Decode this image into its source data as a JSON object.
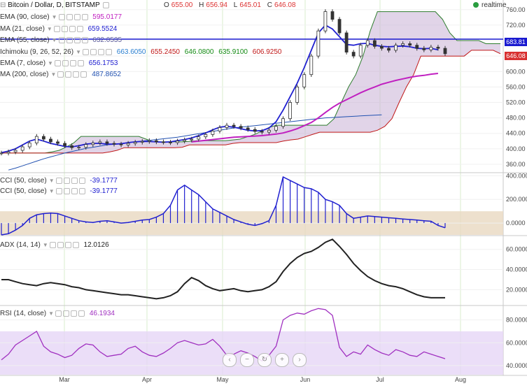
{
  "header": {
    "title": "Bitcoin / Dollar, D, BITSTAMP",
    "ohlc": [
      {
        "k": "O",
        "v": "655.00"
      },
      {
        "k": "H",
        "v": "656.94"
      },
      {
        "k": "L",
        "v": "645.01"
      },
      {
        "k": "C",
        "v": "646.08"
      }
    ],
    "realtime": "realtime"
  },
  "indicators": [
    {
      "label": "EMA (90, close)",
      "value": "595.0177",
      "color": "#c020c0"
    },
    {
      "label": "MA (21, close)",
      "value": "659.5524",
      "color": "#2020d0"
    },
    {
      "label": "EMA (55, close)",
      "value": "632.0535",
      "color": "#6060a0"
    },
    {
      "label": "Ichimoku (9, 26, 52, 26)",
      "values": [
        {
          "v": "663.6050",
          "color": "#2b7fd0"
        },
        {
          "v": "655.2450",
          "color": "#c01818"
        },
        {
          "v": "646.0800",
          "color": "#138a13"
        },
        {
          "v": "635.9100",
          "color": "#138a13"
        },
        {
          "v": "606.9250",
          "color": "#c01818"
        }
      ]
    },
    {
      "label": "EMA (7, close)",
      "value": "656.1753",
      "color": "#2020d0"
    },
    {
      "label": "MA (200, close)",
      "value": "487.8652",
      "color": "#2050b0"
    }
  ],
  "cci_labels": [
    {
      "label": "CCI (50, close)",
      "value": "-39.1777"
    },
    {
      "label": "CCI (50, close)",
      "value": "-39.1777"
    }
  ],
  "adx_label": {
    "label": "ADX (14, 14)",
    "value": "12.0126"
  },
  "rsi_label": {
    "label": "RSI (14, close)",
    "value": "46.1934"
  },
  "price_tags": [
    {
      "text": "683.81",
      "color": "#1a1ad0"
    },
    {
      "text": "646.08",
      "color": "#d83030"
    }
  ],
  "colors": {
    "candle": "#333333",
    "ema90": "#c020c0",
    "ema7": "#2020d0",
    "ma21": "#2020d0",
    "ema55": "#6060a0",
    "ma200": "#2050b0",
    "cloud_fill": "#c8b0d6",
    "cloud_fill_bull": "#a8c8a0",
    "senkou_a": "#2e7d2e",
    "senkou_b": "#c01818",
    "cci": "#2020d0",
    "cci_band": "#e8d8c0",
    "adx": "#222222",
    "rsi": "#a030c0",
    "rsi_band": "#e6d6f6",
    "hline": "#1a1ad0",
    "grid_v": "#d8eccd",
    "grid_h": "#f0f0f0"
  },
  "chart_data": [
    {
      "type": "line",
      "name": "price",
      "x_labels": [
        "Mar",
        "Apr",
        "May",
        "Jun",
        "Jul",
        "Aug"
      ],
      "y_ticks": [
        "760.00",
        "720.00",
        "680.00",
        "640.00",
        "600.00",
        "560.00",
        "520.00",
        "480.00",
        "440.00",
        "400.00",
        "360.00"
      ],
      "ylim": [
        340,
        785
      ],
      "hline": 683.81,
      "series": [
        {
          "name": "close",
          "values": [
            389,
            392,
            396,
            405,
            415,
            432,
            425,
            418,
            414,
            408,
            403,
            404,
            411,
            415,
            418,
            414,
            412,
            410,
            414,
            417,
            419,
            421,
            418,
            417,
            416,
            420,
            423,
            425,
            431,
            437,
            446,
            455,
            461,
            458,
            454,
            450,
            445,
            443,
            448,
            458,
            478,
            520,
            560,
            592,
            640,
            705,
            755,
            735,
            700,
            650,
            640,
            668,
            680,
            665,
            660,
            655,
            668,
            672,
            668,
            660,
            656,
            663,
            660,
            646
          ]
        },
        {
          "name": "ema90",
          "values": [
            null,
            null,
            null,
            null,
            null,
            null,
            null,
            null,
            null,
            null,
            null,
            null,
            null,
            null,
            null,
            null,
            null,
            null,
            null,
            null,
            null,
            null,
            null,
            null,
            null,
            null,
            null,
            418,
            420,
            422,
            424,
            426,
            428,
            430,
            431,
            432,
            433,
            434,
            436,
            438,
            441,
            446,
            452,
            460,
            468,
            480,
            494,
            507,
            518,
            527,
            536,
            545,
            553,
            560,
            567,
            572,
            577,
            581,
            585,
            588,
            590,
            593,
            595,
            null
          ]
        },
        {
          "name": "ema7",
          "values": [
            390,
            394,
            400,
            410,
            420,
            425,
            420,
            414,
            410,
            406,
            405,
            408,
            412,
            414,
            414,
            412,
            412,
            413,
            416,
            418,
            419,
            419,
            418,
            417,
            418,
            421,
            424,
            428,
            434,
            441,
            449,
            456,
            458,
            456,
            452,
            448,
            446,
            447,
            454,
            470,
            500,
            535,
            570,
            610,
            655,
            700,
            720,
            710,
            690,
            670,
            668,
            672,
            673,
            668,
            665,
            664,
            665,
            666,
            664,
            660,
            659,
            660,
            656,
            null
          ]
        },
        {
          "name": "ma200",
          "values": [
            null,
            345,
            350,
            356,
            362,
            368,
            374,
            379,
            384,
            389,
            393,
            397,
            401,
            404,
            407,
            410,
            412,
            414,
            416,
            418,
            420,
            422,
            424,
            426,
            428,
            430,
            433,
            436,
            439,
            442,
            445,
            448,
            451,
            454,
            456,
            458,
            460,
            462,
            464,
            466,
            468,
            470,
            472,
            474,
            476,
            478,
            480,
            481,
            482,
            483,
            484,
            485,
            486,
            487,
            488,
            null,
            null,
            null,
            null,
            null,
            null,
            null,
            null,
            null
          ]
        }
      ]
    },
    {
      "type": "bar",
      "name": "CCI (50, close)",
      "y_ticks": [
        "400.0000",
        "200.0000",
        "0.0000"
      ],
      "ylim": [
        -100,
        420
      ],
      "band": [
        -100,
        100
      ],
      "values": [
        -100,
        -90,
        -60,
        -20,
        40,
        70,
        80,
        85,
        80,
        60,
        40,
        20,
        10,
        5,
        15,
        20,
        10,
        0,
        5,
        15,
        25,
        30,
        50,
        80,
        150,
        280,
        320,
        280,
        240,
        180,
        120,
        90,
        60,
        30,
        10,
        -10,
        -20,
        -5,
        20,
        150,
        390,
        360,
        330,
        300,
        290,
        260,
        200,
        180,
        150,
        80,
        40,
        50,
        60,
        55,
        50,
        45,
        40,
        35,
        30,
        25,
        20,
        15,
        -20,
        -40
      ]
    },
    {
      "type": "line",
      "name": "ADX (14, 14)",
      "y_ticks": [
        "60.0000",
        "40.0000",
        "20.0000"
      ],
      "ylim": [
        5,
        73
      ],
      "values": [
        30,
        30,
        28,
        26,
        25,
        24,
        26,
        27,
        26,
        25,
        23,
        22,
        20,
        19,
        18,
        17,
        16,
        15,
        15,
        14,
        13,
        12,
        11,
        12,
        14,
        18,
        26,
        32,
        29,
        24,
        21,
        19,
        20,
        21,
        19,
        18,
        19,
        20,
        23,
        28,
        38,
        46,
        52,
        56,
        58,
        62,
        67,
        70,
        63,
        55,
        46,
        39,
        33,
        29,
        26,
        24,
        23,
        21,
        18,
        15,
        13,
        12,
        12,
        12
      ]
    },
    {
      "type": "line",
      "name": "RSI (14, close)",
      "y_ticks": [
        "80.0000",
        "60.0000",
        "40.0000"
      ],
      "ylim": [
        32,
        92
      ],
      "band": [
        30,
        70
      ],
      "values": [
        45,
        50,
        58,
        62,
        66,
        70,
        57,
        52,
        50,
        47,
        49,
        55,
        59,
        58,
        52,
        48,
        49,
        50,
        55,
        57,
        52,
        49,
        48,
        51,
        55,
        60,
        62,
        60,
        58,
        59,
        63,
        57,
        49,
        50,
        53,
        51,
        48,
        44,
        49,
        57,
        80,
        84,
        86,
        85,
        88,
        90,
        89,
        84,
        56,
        48,
        52,
        50,
        58,
        54,
        51,
        49,
        54,
        52,
        49,
        48,
        52,
        50,
        48,
        46
      ]
    }
  ]
}
